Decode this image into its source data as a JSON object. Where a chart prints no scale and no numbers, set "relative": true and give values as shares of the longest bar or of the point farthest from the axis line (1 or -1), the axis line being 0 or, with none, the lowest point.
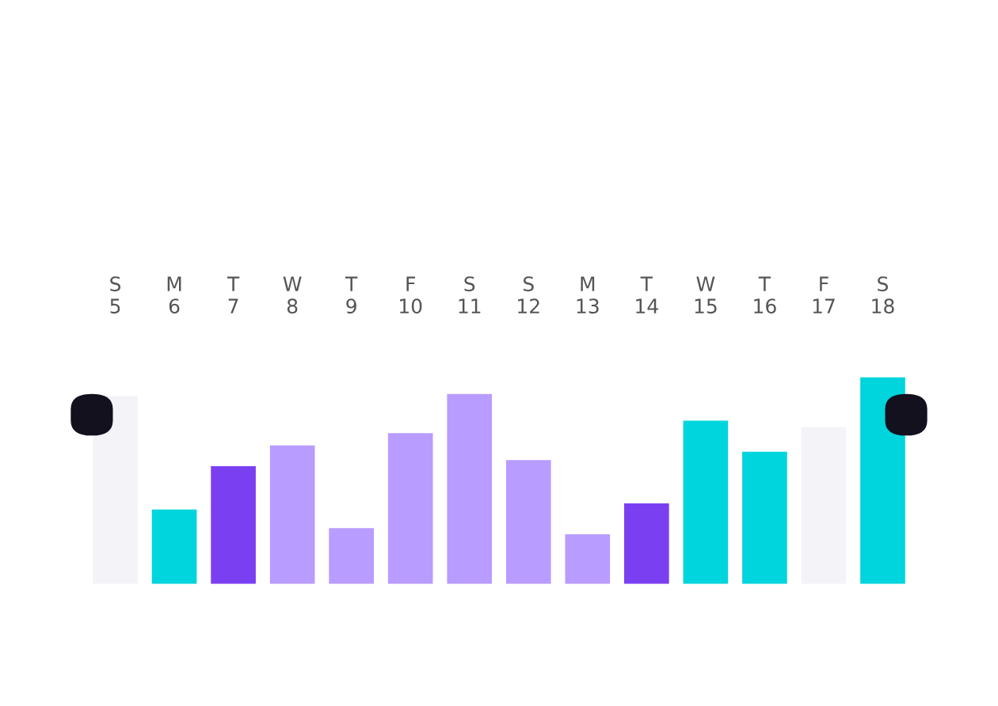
{
  "chart_data": {
    "type": "bar",
    "relative": true,
    "categories": [
      "S\n5",
      "M\n6",
      "T\n7",
      "W\n8",
      "T\n9",
      "F\n10",
      "S\n11",
      "S\n12",
      "M\n13",
      "T\n14",
      "W\n15",
      "T\n16",
      "F\n17",
      "S\n18"
    ],
    "values": [
      0.91,
      0.36,
      0.57,
      0.67,
      0.27,
      0.73,
      0.92,
      0.6,
      0.24,
      0.39,
      0.79,
      0.64,
      0.76,
      1
    ],
    "colors": [
      "#f4f4f8",
      "#00d4dc",
      "#7b3ff2",
      "#b89cff",
      "#b89cff",
      "#b89cff",
      "#b89cff",
      "#b89cff",
      "#b89cff",
      "#7b3ff2",
      "#00d4dc",
      "#00d4dc",
      "#f4f4f8",
      "#00d4dc"
    ],
    "grid": false,
    "legend": false
  }
}
